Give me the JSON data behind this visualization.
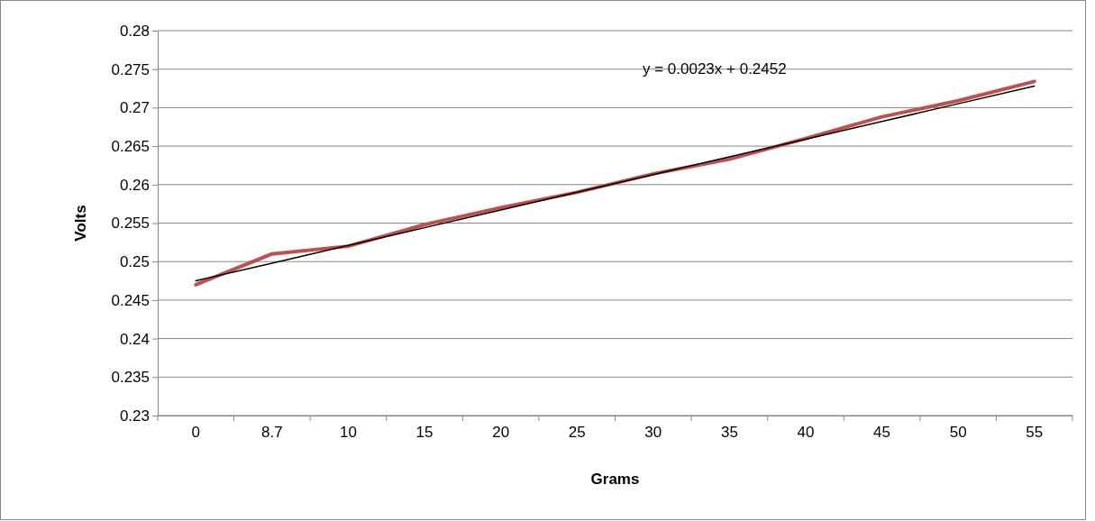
{
  "chart_data": {
    "type": "line",
    "xlabel": "Grams",
    "ylabel": "Volts",
    "categories": [
      "0",
      "8.7",
      "10",
      "15",
      "20",
      "25",
      "30",
      "35",
      "40",
      "45",
      "50",
      "55"
    ],
    "series": [
      {
        "color": "#c0504d",
        "values": [
          0.247,
          0.251,
          0.252,
          0.2548,
          0.257,
          0.259,
          0.2614,
          0.2633,
          0.266,
          0.2688,
          0.2709,
          0.2734
        ]
      },
      {
        "type": "line",
        "color": "#000000",
        "values": [
          0.2475,
          0.2498,
          0.2521,
          0.2544,
          0.2567,
          0.259,
          0.2613,
          0.2636,
          0.2659,
          0.2682,
          0.2705,
          0.2728
        ]
      }
    ],
    "ylim": [
      0.23,
      0.28
    ],
    "yticks": [
      0.23,
      0.235,
      0.24,
      0.245,
      0.25,
      0.255,
      0.26,
      0.265,
      0.27,
      0.275,
      0.28
    ],
    "grid": "y",
    "marker": "none",
    "annotations": [
      "y = 0.0023x + 0.2452"
    ]
  }
}
